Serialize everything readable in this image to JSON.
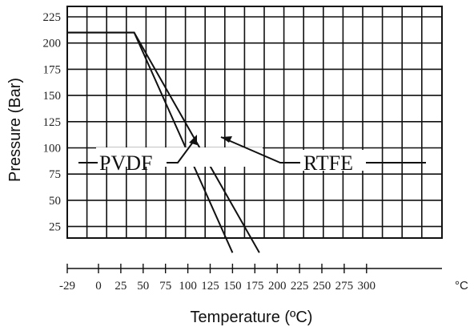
{
  "chart_data": {
    "type": "line",
    "xlabel": "Temperature (ºC)",
    "ylabel": "Pressure (Bar)",
    "x_unit": "°C",
    "x_ticks": [
      "-29",
      "0",
      "25",
      "50",
      "75",
      "100",
      "125",
      "150",
      "175",
      "200",
      "225",
      "250",
      "275",
      "300"
    ],
    "y_ticks": [
      "225",
      "200",
      "175",
      "150",
      "125",
      "100",
      "75",
      "50",
      "25"
    ],
    "xlim": [
      -29,
      300
    ],
    "ylim": [
      0,
      225
    ],
    "grid": true,
    "series": [
      {
        "name": "PVDF",
        "points": [
          [
            -29,
            210
          ],
          [
            40,
            210
          ],
          [
            150,
            0
          ]
        ]
      },
      {
        "name": "RTFE",
        "points": [
          [
            -29,
            210
          ],
          [
            40,
            210
          ],
          [
            180,
            0
          ]
        ]
      }
    ]
  }
}
